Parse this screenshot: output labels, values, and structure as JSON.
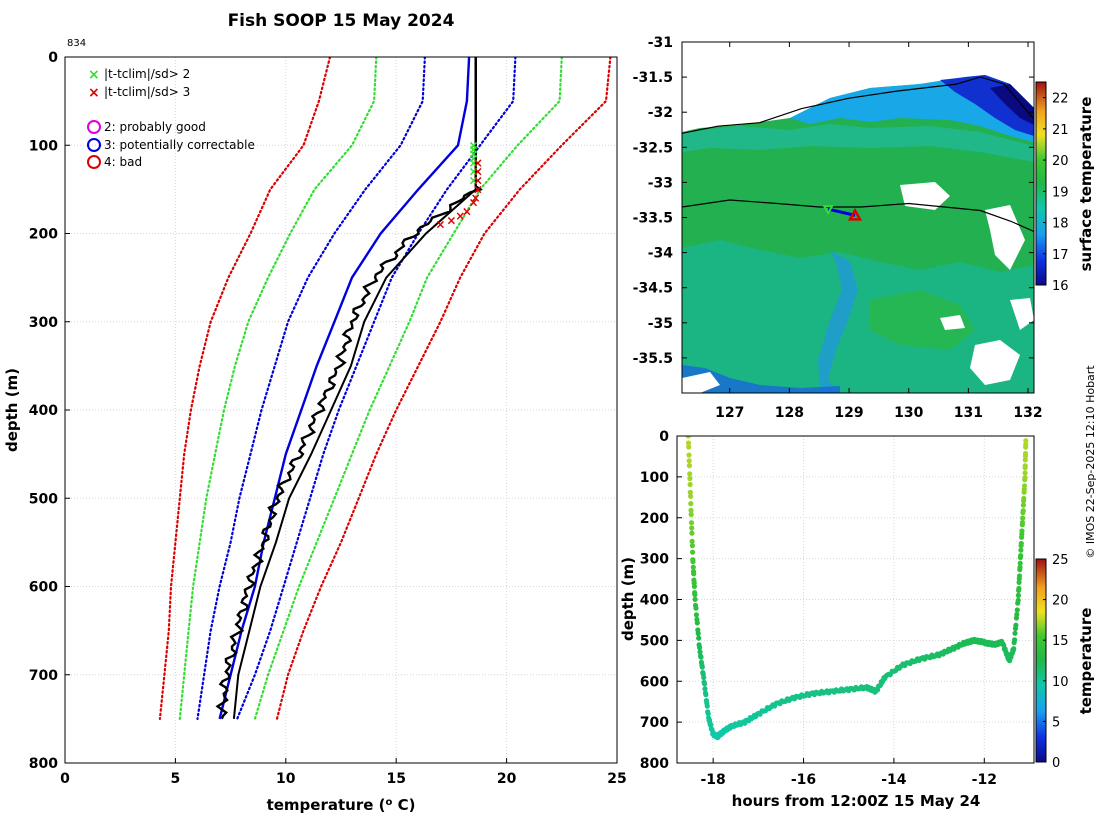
{
  "title": "Fish SOOP 15 May 2024",
  "profile_count": "834",
  "credit": "© IMOS 22-Sep-2025 12:10 Hobart",
  "colors": {
    "green_line": "#33dd33",
    "blue_line": "#0000dd",
    "red_line": "#dd0000"
  },
  "chart_data": [
    {
      "id": "profile",
      "type": "line",
      "xlabel": "temperature (",
      "xlabel_sup": "o",
      "xlabel_end": " C)",
      "ylabel": "depth (m)",
      "xlim": [
        0,
        25
      ],
      "ylim": [
        800,
        0
      ],
      "xticks": [
        "0",
        "5",
        "10",
        "15",
        "20",
        "25"
      ],
      "yticks": [
        "0",
        "100",
        "200",
        "300",
        "400",
        "500",
        "600",
        "700",
        "800"
      ],
      "legend": [
        {
          "label": "|t-tclim|/sd> 2",
          "marker": "x",
          "color": "#33dd33"
        },
        {
          "label": "|t-tclim|/sd> 3",
          "marker": "x",
          "color": "#dd0000"
        },
        {
          "label": "2: probably good",
          "marker": "circle",
          "color": "#dd00dd"
        },
        {
          "label": "3: potentially correctable",
          "marker": "circle",
          "color": "#0000dd"
        },
        {
          "label": "4: bad",
          "marker": "circle",
          "color": "#dd0000"
        }
      ],
      "depth": [
        0,
        50,
        100,
        150,
        200,
        250,
        300,
        350,
        400,
        450,
        500,
        550,
        600,
        650,
        700,
        750
      ],
      "series": [
        {
          "name": "climatology mean",
          "style": "solid",
          "color": "#0000dd",
          "values": [
            18.3,
            18.2,
            17.8,
            16.0,
            14.3,
            13.0,
            12.2,
            11.4,
            10.7,
            10.0,
            9.5,
            9.0,
            8.6,
            8.0,
            7.5,
            7.0
          ]
        },
        {
          "name": "mean - 1 sd",
          "style": "dotted",
          "color": "#0000dd",
          "values": [
            16.3,
            16.2,
            15.2,
            13.6,
            12.2,
            11.0,
            10.1,
            9.5,
            8.9,
            8.4,
            7.9,
            7.5,
            7.0,
            6.6,
            6.3,
            6.0
          ]
        },
        {
          "name": "mean + 1 sd",
          "style": "dotted",
          "color": "#0000dd",
          "values": [
            20.4,
            20.3,
            18.8,
            17.3,
            16.0,
            14.8,
            14.0,
            13.2,
            12.4,
            11.7,
            11.1,
            10.5,
            9.9,
            9.3,
            8.6,
            7.8
          ]
        },
        {
          "name": "mean - 2 sd",
          "style": "dotted",
          "color": "#33dd33",
          "values": [
            14.1,
            14.0,
            13.0,
            11.3,
            10.2,
            9.2,
            8.3,
            7.7,
            7.2,
            6.8,
            6.4,
            6.1,
            5.8,
            5.6,
            5.4,
            5.2
          ]
        },
        {
          "name": "mean + 2 sd",
          "style": "dotted",
          "color": "#33dd33",
          "values": [
            22.5,
            22.4,
            20.5,
            18.8,
            17.6,
            16.4,
            15.6,
            14.7,
            13.8,
            13.0,
            12.2,
            11.4,
            10.6,
            9.9,
            9.2,
            8.6
          ]
        },
        {
          "name": "mean - 3 sd",
          "style": "dotted",
          "color": "#dd0000",
          "values": [
            12.0,
            11.5,
            10.8,
            9.3,
            8.4,
            7.4,
            6.6,
            6.1,
            5.7,
            5.4,
            5.2,
            5.0,
            4.8,
            4.7,
            4.5,
            4.3
          ]
        },
        {
          "name": "mean + 3 sd",
          "style": "dotted",
          "color": "#dd0000",
          "values": [
            24.7,
            24.5,
            22.5,
            20.6,
            19.0,
            17.9,
            17.0,
            16.0,
            15.0,
            14.1,
            13.3,
            12.5,
            11.6,
            10.8,
            10.1,
            9.6
          ]
        },
        {
          "name": "observed profile",
          "style": "solid",
          "color": "#000000",
          "values": [
            18.6,
            18.6,
            18.6,
            18.6,
            15.8,
            14.0,
            13.0,
            12.4,
            11.5,
            10.6,
            9.6,
            9.0,
            8.3,
            7.8,
            7.3,
            7.1
          ]
        }
      ],
      "qc_flags": {
        "green_x_depths": [
          100,
          105,
          110,
          115,
          120,
          130,
          140
        ],
        "green_x_temp": 18.5,
        "red_x_depths": [
          120,
          130,
          140,
          150,
          160,
          165,
          175,
          180,
          185,
          190
        ],
        "red_x_temps": [
          18.7,
          18.7,
          18.7,
          18.7,
          18.6,
          18.5,
          18.2,
          17.9,
          17.5,
          17.0
        ]
      }
    },
    {
      "id": "sst_map",
      "type": "heatmap",
      "xlim": [
        126.2,
        132.1
      ],
      "ylim": [
        -36.0,
        -31.0
      ],
      "xticks": [
        "127",
        "128",
        "129",
        "130",
        "131",
        "132"
      ],
      "yticks": [
        "-31",
        "-31.5",
        "-32",
        "-32.5",
        "-33",
        "-33.5",
        "-34",
        "-34.5",
        "-35",
        "-35.5"
      ],
      "colorbar_label": "surface temperature",
      "colorbar_range": [
        16,
        22.5
      ],
      "colorbar_ticks": [
        "16",
        "17",
        "18",
        "19",
        "20",
        "21",
        "22"
      ],
      "coastline": {
        "lon": [
          126.2,
          126.8,
          127.5,
          128.2,
          129.0,
          129.8,
          130.3,
          130.8,
          131.2,
          131.6,
          132.1
        ],
        "lat": [
          -32.3,
          -32.2,
          -32.15,
          -31.95,
          -31.8,
          -31.7,
          -31.65,
          -31.6,
          -31.5,
          -31.6,
          -32.1
        ]
      },
      "track": {
        "lon": [
          126.2,
          127.0,
          127.8,
          128.5,
          129.2,
          130.0,
          130.6,
          131.2,
          131.7,
          132.1
        ],
        "lat": [
          -33.35,
          -33.25,
          -33.3,
          -33.35,
          -33.35,
          -33.3,
          -33.35,
          -33.4,
          -33.55,
          -33.7
        ]
      },
      "deploy_start": {
        "lon": 128.65,
        "lat": -33.38
      },
      "deploy_end": {
        "lon": 129.1,
        "lat": -33.47
      }
    },
    {
      "id": "depth_time",
      "type": "scatter",
      "xlabel": "hours from 12:00Z 15 May 24",
      "ylabel": "depth (m)",
      "colorbar_label": "temperature",
      "xlim": [
        -18.8,
        -10.9
      ],
      "ylim": [
        800,
        0
      ],
      "clim": [
        0,
        25
      ],
      "xticks": [
        "-18",
        "-16",
        "-14",
        "-12"
      ],
      "yticks": [
        "0",
        "100",
        "200",
        "300",
        "400",
        "500",
        "600",
        "700",
        "800"
      ],
      "colorbar_ticks": [
        "0",
        "5",
        "10",
        "15",
        "20",
        "25"
      ],
      "x": [
        -18.55,
        -18.5,
        -18.45,
        -18.4,
        -18.3,
        -18.2,
        -18.1,
        -18.0,
        -17.9,
        -17.8,
        -17.6,
        -17.3,
        -17.0,
        -16.6,
        -16.2,
        -15.8,
        -15.4,
        -15.0,
        -14.6,
        -14.4,
        -14.2,
        -13.8,
        -13.4,
        -13.0,
        -12.7,
        -12.4,
        -12.2,
        -12.0,
        -11.8,
        -11.6,
        -11.45,
        -11.35,
        -11.25,
        -11.2,
        -11.15,
        -11.1,
        -11.08
      ],
      "y": [
        0,
        150,
        300,
        400,
        520,
        600,
        690,
        730,
        735,
        725,
        710,
        700,
        680,
        655,
        640,
        630,
        625,
        620,
        615,
        625,
        590,
        560,
        545,
        535,
        520,
        505,
        500,
        505,
        510,
        505,
        550,
        520,
        400,
        300,
        200,
        100,
        0
      ],
      "temps": [
        17.5,
        17.0,
        15.5,
        14.0,
        12.0,
        11.0,
        10.0,
        9.5,
        9.5,
        9.5,
        9.7,
        9.8,
        10.0,
        10.3,
        10.5,
        10.6,
        10.7,
        10.8,
        10.9,
        10.8,
        11.0,
        11.3,
        11.5,
        11.7,
        11.9,
        12.1,
        12.2,
        12.1,
        12.0,
        12.1,
        11.8,
        12.0,
        13.5,
        14.5,
        16.0,
        17.0,
        17.5
      ]
    }
  ]
}
